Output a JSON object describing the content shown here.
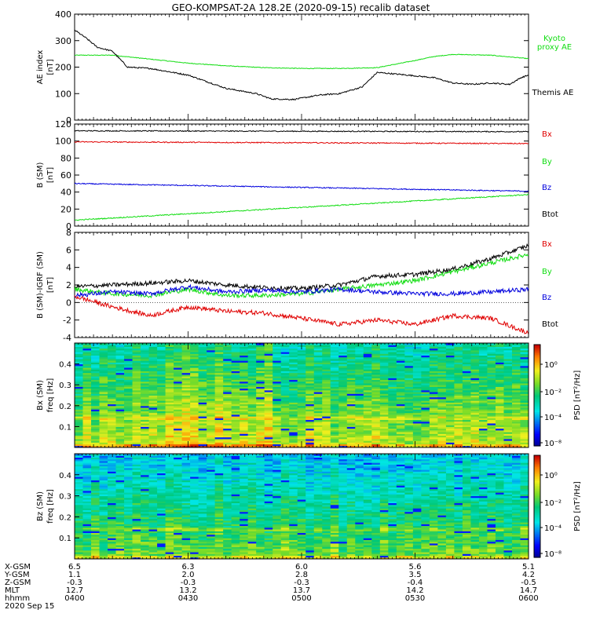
{
  "title": "GEO-KOMPSAT-2A 128.2E (2020-09-15) recalib dataset",
  "colors": {
    "black": "#000000",
    "red": "#e00000",
    "green": "#10dd10",
    "blue": "#0000dd"
  },
  "chart_data": [
    {
      "type": "line",
      "ylabel": "AE index [nT]",
      "ylim": [
        0,
        400
      ],
      "yticks": [
        "0",
        "100",
        "200",
        "300",
        "400"
      ],
      "xlim": [
        0,
        120
      ],
      "series": [
        {
          "name": "Kyoto proxy AE",
          "color": "green",
          "x": [
            0,
            10,
            20,
            30,
            40,
            50,
            60,
            70,
            80,
            90,
            95,
            100,
            110,
            120
          ],
          "values": [
            245,
            245,
            230,
            215,
            205,
            198,
            195,
            195,
            198,
            225,
            240,
            248,
            245,
            232
          ]
        },
        {
          "name": "Themis AE",
          "color": "black",
          "x": [
            0,
            3,
            6,
            10,
            14,
            20,
            30,
            40,
            48,
            52,
            58,
            65,
            70,
            76,
            80,
            88,
            95,
            100,
            105,
            110,
            115,
            118,
            120
          ],
          "values": [
            340,
            310,
            275,
            260,
            200,
            195,
            170,
            120,
            100,
            80,
            78,
            95,
            100,
            125,
            180,
            170,
            160,
            140,
            135,
            140,
            135,
            160,
            170
          ]
        }
      ]
    },
    {
      "type": "line",
      "ylabel": "B (SM) [nT]",
      "ylim": [
        0,
        120
      ],
      "yticks": [
        "0",
        "20",
        "40",
        "60",
        "80",
        "100",
        "120"
      ],
      "xlim": [
        0,
        120
      ],
      "series": [
        {
          "name": "Btot",
          "color": "black",
          "x": [
            0,
            120
          ],
          "values": [
            112,
            111
          ]
        },
        {
          "name": "Bx",
          "color": "red",
          "x": [
            0,
            60,
            120
          ],
          "values": [
            99,
            98,
            97
          ]
        },
        {
          "name": "Bz",
          "color": "blue",
          "x": [
            0,
            120
          ],
          "values": [
            50,
            41
          ]
        },
        {
          "name": "By",
          "color": "green",
          "x": [
            0,
            120
          ],
          "values": [
            7,
            37
          ]
        }
      ]
    },
    {
      "type": "line",
      "ylabel": "B (SM)-IGRF (SM) [nT]",
      "ylim": [
        -4,
        8
      ],
      "yticks": [
        "-4",
        "-2",
        "0",
        "2",
        "4",
        "6",
        "8"
      ],
      "xlim": [
        0,
        120
      ],
      "series": [
        {
          "name": "Btot",
          "color": "black",
          "x": [
            0,
            10,
            20,
            30,
            40,
            50,
            60,
            70,
            80,
            90,
            100,
            110,
            120
          ],
          "values": [
            1.8,
            2.0,
            2.2,
            2.5,
            2.0,
            1.7,
            1.6,
            2.0,
            3.0,
            3.2,
            3.8,
            5.0,
            6.5
          ]
        },
        {
          "name": "By",
          "color": "green",
          "x": [
            0,
            10,
            20,
            30,
            40,
            50,
            60,
            70,
            80,
            90,
            100,
            110,
            120
          ],
          "values": [
            1.5,
            1.0,
            0.8,
            1.5,
            0.8,
            0.8,
            1.0,
            1.5,
            2.0,
            2.5,
            3.5,
            4.5,
            5.5
          ]
        },
        {
          "name": "Bz",
          "color": "blue",
          "x": [
            0,
            10,
            20,
            30,
            40,
            50,
            60,
            70,
            80,
            90,
            100,
            110,
            120
          ],
          "values": [
            0.8,
            1.2,
            1.0,
            1.8,
            1.2,
            1.4,
            1.2,
            1.5,
            1.2,
            1.0,
            1.0,
            1.2,
            1.5
          ]
        },
        {
          "name": "Bx",
          "color": "red",
          "x": [
            0,
            10,
            20,
            30,
            40,
            50,
            60,
            70,
            80,
            90,
            100,
            110,
            120
          ],
          "values": [
            0.7,
            -0.5,
            -1.5,
            -0.5,
            -1.0,
            -1.2,
            -1.8,
            -2.5,
            -2.0,
            -2.5,
            -1.5,
            -1.8,
            -3.5
          ]
        }
      ]
    },
    {
      "type": "heatmap",
      "ylabel": "Bx (SM) freq [Hz]",
      "ylim": [
        0,
        0.5
      ],
      "yticks": [
        "0.1",
        "0.2",
        "0.3",
        "0.4"
      ],
      "colorbar_label": "PSD [nT²/Hz]",
      "colorbar_ticks": [
        "10⁰",
        "10⁻²",
        "10⁻⁴",
        "10⁻⁸"
      ]
    },
    {
      "type": "heatmap",
      "ylabel": "Bz (SM) freq [Hz]",
      "ylim": [
        0,
        0.5
      ],
      "yticks": [
        "0.1",
        "0.2",
        "0.3",
        "0.4"
      ],
      "colorbar_label": "PSD [nT²/Hz]",
      "colorbar_ticks": [
        "10⁰",
        "10⁻²",
        "10⁻⁴",
        "10⁻⁸"
      ]
    }
  ],
  "ephemeris": {
    "row_labels": [
      "X-GSM",
      "Y-GSM",
      "Z-GSM",
      "MLT",
      "hhmm"
    ],
    "columns": [
      [
        "6.5",
        "1.1",
        "-0.3",
        "12.7",
        "0400"
      ],
      [
        "6.3",
        "2.0",
        "-0.3",
        "13.2",
        "0430"
      ],
      [
        "6.0",
        "2.8",
        "-0.3",
        "13.7",
        "0500"
      ],
      [
        "5.6",
        "3.5",
        "-0.4",
        "14.2",
        "0530"
      ],
      [
        "5.1",
        "4.2",
        "-0.5",
        "14.7",
        "0600"
      ]
    ],
    "date": "2020 Sep 15"
  }
}
